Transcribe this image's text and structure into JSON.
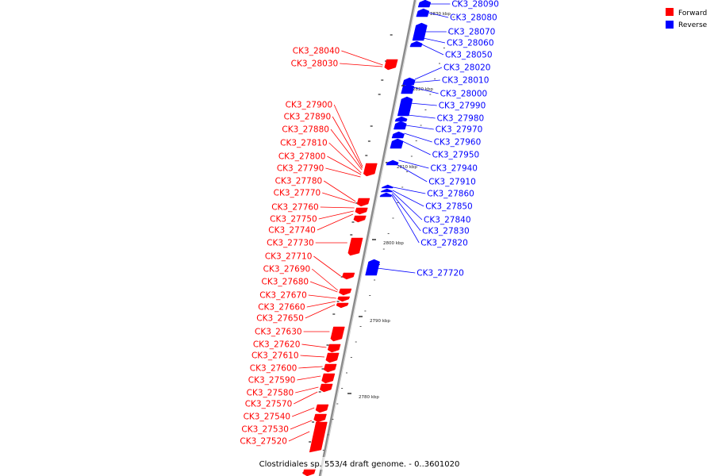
{
  "caption": "Clostridiales sp. 553/4 draft genome. - 0..3601020",
  "legend": [
    {
      "label": "Forward",
      "color": "#ff0000"
    },
    {
      "label": "Reverse",
      "color": "#0000ff"
    }
  ],
  "colors": {
    "forward": "#ff0000",
    "reverse": "#0000ff",
    "backbone": "#888888"
  },
  "ticks": [
    "2830 kbp",
    "2820 kbp",
    "2810 kbp",
    "2800 kbp",
    "2790 kbp",
    "2780 kbp"
  ],
  "forward_genes": [
    "CK3_28040",
    "CK3_28030",
    "CK3_27900",
    "CK3_27890",
    "CK3_27880",
    "CK3_27810",
    "CK3_27800",
    "CK3_27790",
    "CK3_27780",
    "CK3_27770",
    "CK3_27760",
    "CK3_27750",
    "CK3_27740",
    "CK3_27730",
    "CK3_27710",
    "CK3_27690",
    "CK3_27680",
    "CK3_27670",
    "CK3_27660",
    "CK3_27650",
    "CK3_27630",
    "CK3_27620",
    "CK3_27610",
    "CK3_27600",
    "CK3_27590",
    "CK3_27580",
    "CK3_27570",
    "CK3_27540",
    "CK3_27530",
    "CK3_27520"
  ],
  "reverse_genes": [
    "CK3_28090",
    "CK3_28080",
    "CK3_28070",
    "CK3_28060",
    "CK3_28050",
    "CK3_28020",
    "CK3_28010",
    "CK3_28000",
    "CK3_27990",
    "CK3_27980",
    "CK3_27970",
    "CK3_27960",
    "CK3_27950",
    "CK3_27940",
    "CK3_27910",
    "CK3_27860",
    "CK3_27850",
    "CK3_27840",
    "CK3_27830",
    "CK3_27820",
    "CK3_27720"
  ]
}
